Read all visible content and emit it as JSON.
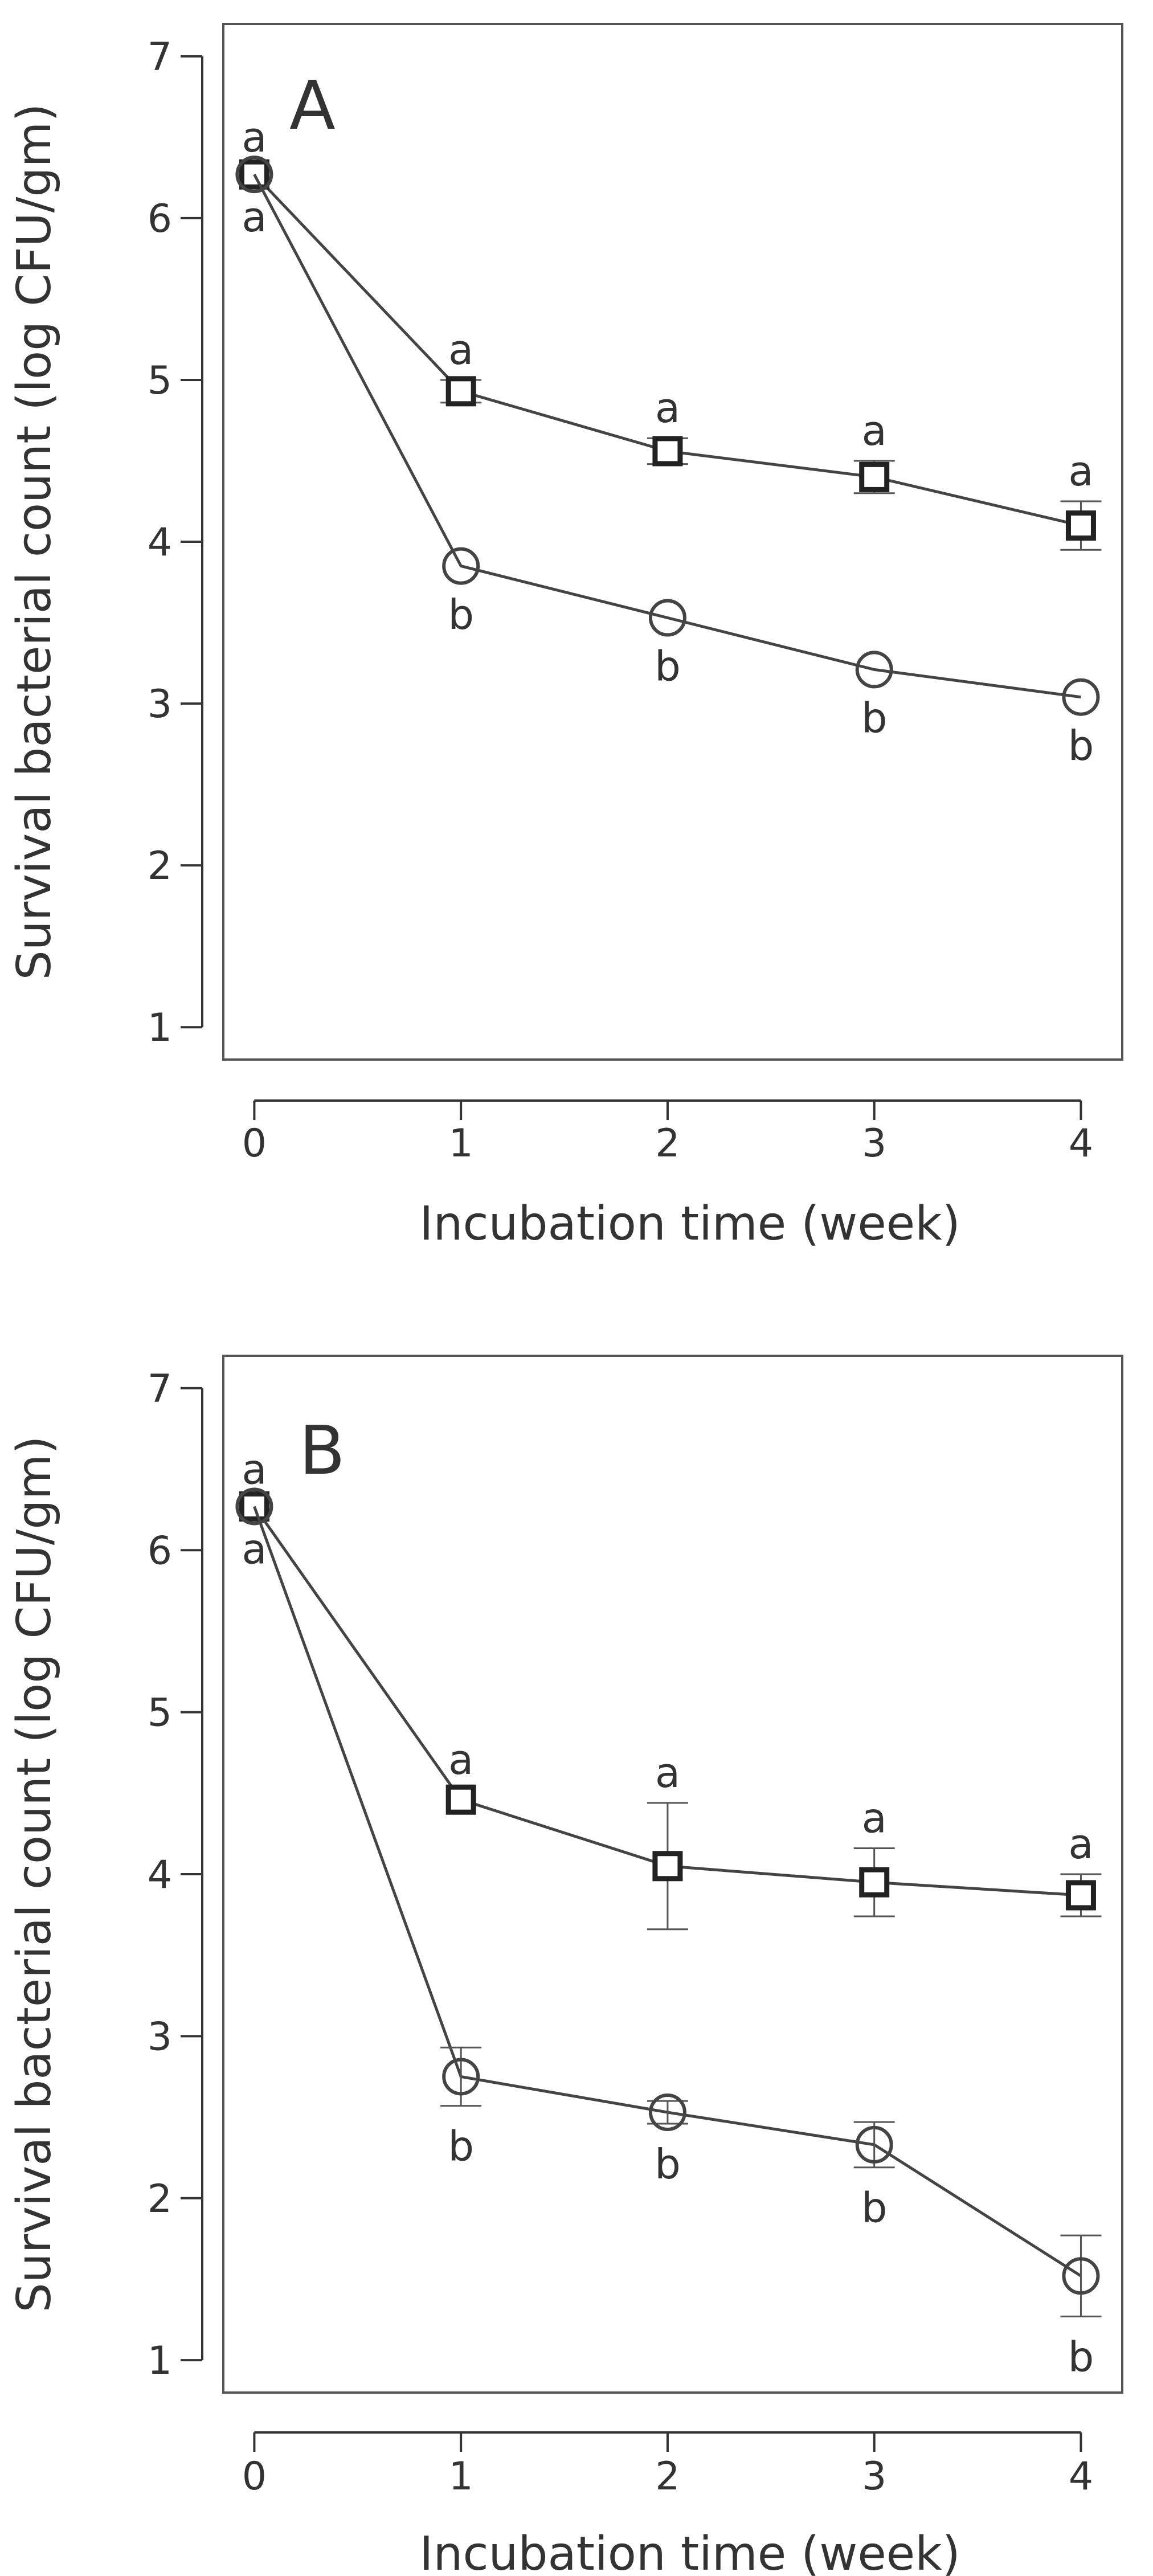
{
  "chart_data": [
    {
      "type": "line",
      "panel_label": "A",
      "xlabel": "Incubation time (week)",
      "ylabel": "Survival bacterial count (log CFU/gm)",
      "xlim": [
        -0.15,
        4.2
      ],
      "ylim": [
        0.8,
        7.2
      ],
      "x_ticks": [
        "0",
        "1",
        "2",
        "3",
        "4"
      ],
      "y_ticks": [
        "1",
        "2",
        "3",
        "4",
        "5",
        "6",
        "7"
      ],
      "x": [
        0,
        1,
        2,
        3,
        4
      ],
      "series": [
        {
          "name": "square-series",
          "marker": "square",
          "values": [
            6.27,
            4.93,
            4.56,
            4.4,
            4.1
          ],
          "error": [
            0.05,
            0.07,
            0.08,
            0.1,
            0.15
          ],
          "letters": [
            "a",
            "a",
            "a",
            "a",
            "a"
          ]
        },
        {
          "name": "circle-series",
          "marker": "circle",
          "values": [
            6.27,
            3.85,
            3.53,
            3.21,
            3.04
          ],
          "error": [
            0.05,
            0.05,
            0.05,
            0.05,
            0.05
          ],
          "letters": [
            "a",
            "b",
            "b",
            "b",
            "b"
          ]
        }
      ]
    },
    {
      "type": "line",
      "panel_label": "B",
      "xlabel": "Incubation time (week)",
      "ylabel": "Survival bacterial count (log CFU/gm)",
      "xlim": [
        -0.15,
        4.2
      ],
      "ylim": [
        0.8,
        7.2
      ],
      "x_ticks": [
        "0",
        "1",
        "2",
        "3",
        "4"
      ],
      "y_ticks": [
        "1",
        "2",
        "3",
        "4",
        "5",
        "6",
        "7"
      ],
      "x": [
        0,
        1,
        2,
        3,
        4
      ],
      "series": [
        {
          "name": "square-series",
          "marker": "square",
          "values": [
            6.27,
            4.46,
            4.05,
            3.95,
            3.87
          ],
          "error": [
            0.05,
            0.06,
            0.39,
            0.21,
            0.13
          ],
          "letters": [
            "a",
            "a",
            "a",
            "a",
            "a"
          ]
        },
        {
          "name": "circle-series",
          "marker": "circle",
          "values": [
            6.27,
            2.75,
            2.53,
            2.33,
            1.52
          ],
          "error": [
            0.05,
            0.18,
            0.07,
            0.14,
            0.25
          ],
          "letters": [
            "a",
            "b",
            "b",
            "b",
            "b"
          ]
        }
      ]
    }
  ]
}
